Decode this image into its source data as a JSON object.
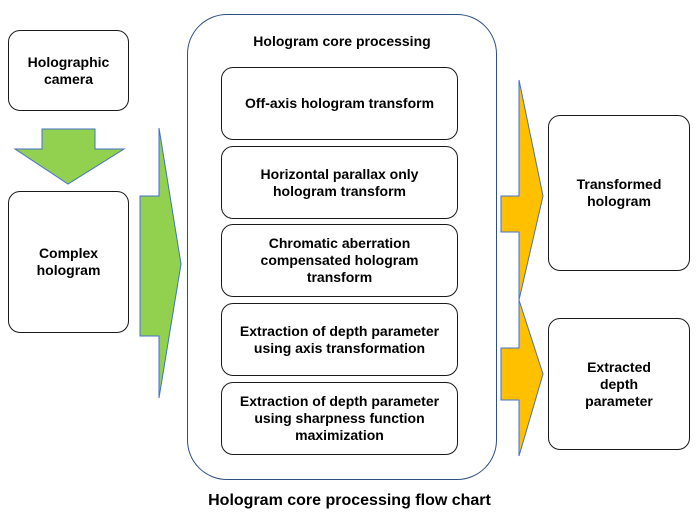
{
  "diagram": {
    "inputs": {
      "camera": "Holographic camera",
      "complex": "Complex hologram"
    },
    "core": {
      "title": "Hologram core processing",
      "steps": [
        "Off-axis hologram transform",
        "Horizontal parallax only hologram transform",
        "Chromatic aberration compensated hologram transform",
        "Extraction of depth parameter using axis transformation",
        "Extraction of depth parameter using sharpness function maximization"
      ]
    },
    "outputs": {
      "transformed": "Transformed hologram",
      "extracted": "Extracted depth parameter"
    },
    "caption": "Hologram core processing flow chart"
  },
  "colors": {
    "green_arrow": "#92d050",
    "green_arrow_stroke": "#4472c4",
    "orange_arrow": "#ffc000",
    "container_border": "#2f4f7f"
  }
}
